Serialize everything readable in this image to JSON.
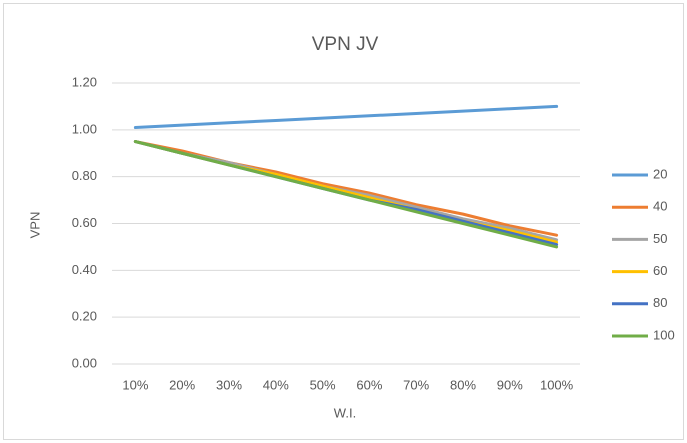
{
  "chart_data": {
    "type": "line",
    "title": "VPN JV",
    "x_label": "W.I.",
    "y_label": "VPN",
    "categories": [
      "10%",
      "20%",
      "30%",
      "40%",
      "50%",
      "60%",
      "70%",
      "80%",
      "90%",
      "100%"
    ],
    "series": [
      {
        "name": "20",
        "color": "#5b9bd5",
        "values": [
          1.01,
          1.02,
          1.03,
          1.04,
          1.05,
          1.06,
          1.07,
          1.08,
          1.09,
          1.1
        ]
      },
      {
        "name": "40",
        "color": "#ed7d31",
        "values": [
          0.95,
          0.91,
          0.86,
          0.82,
          0.77,
          0.73,
          0.68,
          0.64,
          0.59,
          0.55
        ]
      },
      {
        "name": "50",
        "color": "#a5a5a5",
        "values": [
          0.95,
          0.9,
          0.86,
          0.81,
          0.76,
          0.72,
          0.67,
          0.62,
          0.58,
          0.53
        ]
      },
      {
        "name": "60",
        "color": "#ffc000",
        "values": [
          0.95,
          0.9,
          0.85,
          0.81,
          0.76,
          0.71,
          0.66,
          0.61,
          0.57,
          0.52
        ]
      },
      {
        "name": "80",
        "color": "#4472c4",
        "values": [
          0.95,
          0.9,
          0.85,
          0.8,
          0.75,
          0.7,
          0.66,
          0.61,
          0.56,
          0.51
        ]
      },
      {
        "name": "100",
        "color": "#70ad47",
        "values": [
          0.95,
          0.9,
          0.85,
          0.8,
          0.75,
          0.7,
          0.65,
          0.6,
          0.55,
          0.5
        ]
      }
    ],
    "ylim": [
      0,
      1.2
    ],
    "yticks": [
      {
        "value": 0,
        "label": "0.00"
      },
      {
        "value": 0.2,
        "label": "0.20"
      },
      {
        "value": 0.4,
        "label": "0.40"
      },
      {
        "value": 0.6,
        "label": "0.60"
      },
      {
        "value": 0.8,
        "label": "0.80"
      },
      {
        "value": 1.0,
        "label": "1.00"
      },
      {
        "value": 1.2,
        "label": "1.20"
      }
    ],
    "grid": true,
    "legend": "right"
  }
}
